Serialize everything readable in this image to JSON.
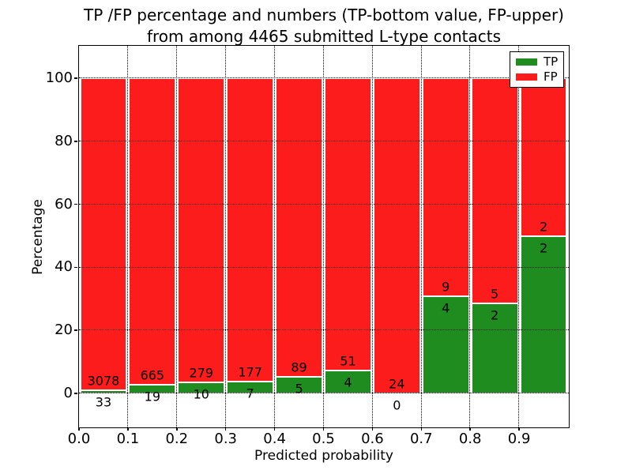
{
  "title": {
    "line1": "TP /FP percentage and numbers (TP-bottom value, FP-upper)",
    "line2": "from among 4465 submitted L-type contacts"
  },
  "axes": {
    "xlabel": "Predicted probability",
    "ylabel": "Percentage",
    "x_ticks": [
      "0.0",
      "0.1",
      "0.2",
      "0.3",
      "0.4",
      "0.5",
      "0.6",
      "0.7",
      "0.8",
      "0.9"
    ],
    "y_ticks": [
      "0",
      "20",
      "40",
      "60",
      "80",
      "100"
    ]
  },
  "legend": {
    "items": [
      {
        "label": "TP",
        "color": "#1e8c1e"
      },
      {
        "label": "FP",
        "color": "#fc1c1c"
      }
    ]
  },
  "colors": {
    "tp": "#1e8c1e",
    "fp": "#fc1c1c",
    "grid": "#000000",
    "bar_edge": "#ffffff"
  },
  "chart_data": {
    "type": "bar",
    "stacked": true,
    "normalized_to": 100,
    "title": "TP /FP percentage and numbers (TP-bottom value, FP-upper) from among 4465 submitted L-type contacts",
    "xlabel": "Predicted probability",
    "ylabel": "Percentage",
    "xlim": [
      0.0,
      1.0
    ],
    "ylim": [
      -10.5,
      110.5
    ],
    "grid": "dotted",
    "legend_position": "upper right",
    "legend_entries": [
      "TP",
      "FP"
    ],
    "total_contacts": 4465,
    "bin_width": 0.1,
    "bins": [
      {
        "x0": 0.0,
        "x1": 0.1,
        "tp_count": 33,
        "fp_count": 3078,
        "tp_pct": 1.06,
        "fp_pct": 98.94
      },
      {
        "x0": 0.1,
        "x1": 0.2,
        "tp_count": 19,
        "fp_count": 665,
        "tp_pct": 2.78,
        "fp_pct": 97.22
      },
      {
        "x0": 0.2,
        "x1": 0.3,
        "tp_count": 10,
        "fp_count": 279,
        "tp_pct": 3.46,
        "fp_pct": 96.54
      },
      {
        "x0": 0.3,
        "x1": 0.4,
        "tp_count": 7,
        "fp_count": 177,
        "tp_pct": 3.8,
        "fp_pct": 96.2
      },
      {
        "x0": 0.4,
        "x1": 0.5,
        "tp_count": 5,
        "fp_count": 89,
        "tp_pct": 5.32,
        "fp_pct": 94.68
      },
      {
        "x0": 0.5,
        "x1": 0.6,
        "tp_count": 4,
        "fp_count": 51,
        "tp_pct": 7.27,
        "fp_pct": 92.73
      },
      {
        "x0": 0.6,
        "x1": 0.7,
        "tp_count": 0,
        "fp_count": 24,
        "tp_pct": 0.0,
        "fp_pct": 100.0
      },
      {
        "x0": 0.7,
        "x1": 0.8,
        "tp_count": 4,
        "fp_count": 9,
        "tp_pct": 30.77,
        "fp_pct": 69.23
      },
      {
        "x0": 0.8,
        "x1": 0.9,
        "tp_count": 2,
        "fp_count": 5,
        "tp_pct": 28.57,
        "fp_pct": 71.43
      },
      {
        "x0": 0.9,
        "x1": 1.0,
        "tp_count": 2,
        "fp_count": 2,
        "tp_pct": 50.0,
        "fp_pct": 50.0
      }
    ]
  }
}
